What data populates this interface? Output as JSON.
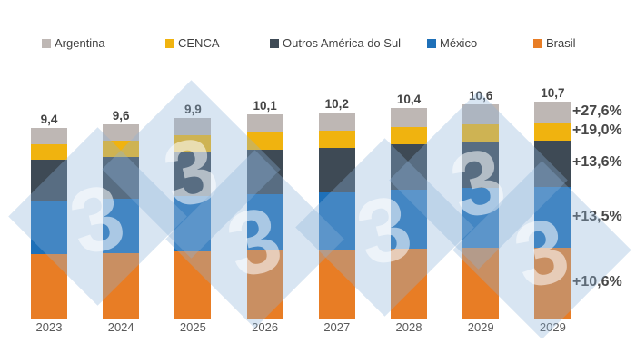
{
  "chart_data": {
    "type": "bar",
    "stacked": true,
    "grid": false,
    "legend_position": "top",
    "categories": [
      "2023",
      "2024",
      "2025",
      "2026",
      "2027",
      "2028",
      "2029",
      "2029"
    ],
    "series": [
      {
        "name": "Brasil",
        "color": "#E87D25",
        "values": [
          3.2,
          3.25,
          3.3,
          3.35,
          3.4,
          3.45,
          3.5,
          3.5
        ]
      },
      {
        "name": "México",
        "color": "#1E70B8",
        "values": [
          2.6,
          2.65,
          2.75,
          2.8,
          2.85,
          2.9,
          2.95,
          3.0
        ]
      },
      {
        "name": "Outros América do Sul",
        "color": "#3E4A55",
        "values": [
          2.05,
          2.1,
          2.15,
          2.2,
          2.2,
          2.25,
          2.25,
          2.3
        ]
      },
      {
        "name": "CENCA",
        "color": "#F0B30F",
        "values": [
          0.75,
          0.8,
          0.85,
          0.85,
          0.85,
          0.85,
          0.9,
          0.9
        ]
      },
      {
        "name": "Argentina",
        "color": "#BEB7B4",
        "values": [
          0.8,
          0.8,
          0.85,
          0.9,
          0.9,
          0.95,
          1.0,
          1.0
        ]
      }
    ],
    "totals": [
      "9,4",
      "9,6",
      "9,9",
      "10,1",
      "10,2",
      "10,4",
      "10,6",
      "10,7"
    ],
    "growth_labels": [
      {
        "text": "+27,6%",
        "series": "Argentina"
      },
      {
        "text": "+19,0%",
        "series": "CENCA"
      },
      {
        "text": "+13,6%",
        "series": "Outros América do Sul"
      },
      {
        "text": "+13,5%",
        "series": "México"
      },
      {
        "text": "+10,6%",
        "series": "Brasil"
      }
    ]
  },
  "legend": {
    "items": [
      {
        "label": "Argentina"
      },
      {
        "label": "CENCA"
      },
      {
        "label": "Outros América do Sul"
      },
      {
        "label": "México"
      },
      {
        "label": "Brasil"
      }
    ]
  },
  "watermark": {
    "glyph": "3"
  }
}
